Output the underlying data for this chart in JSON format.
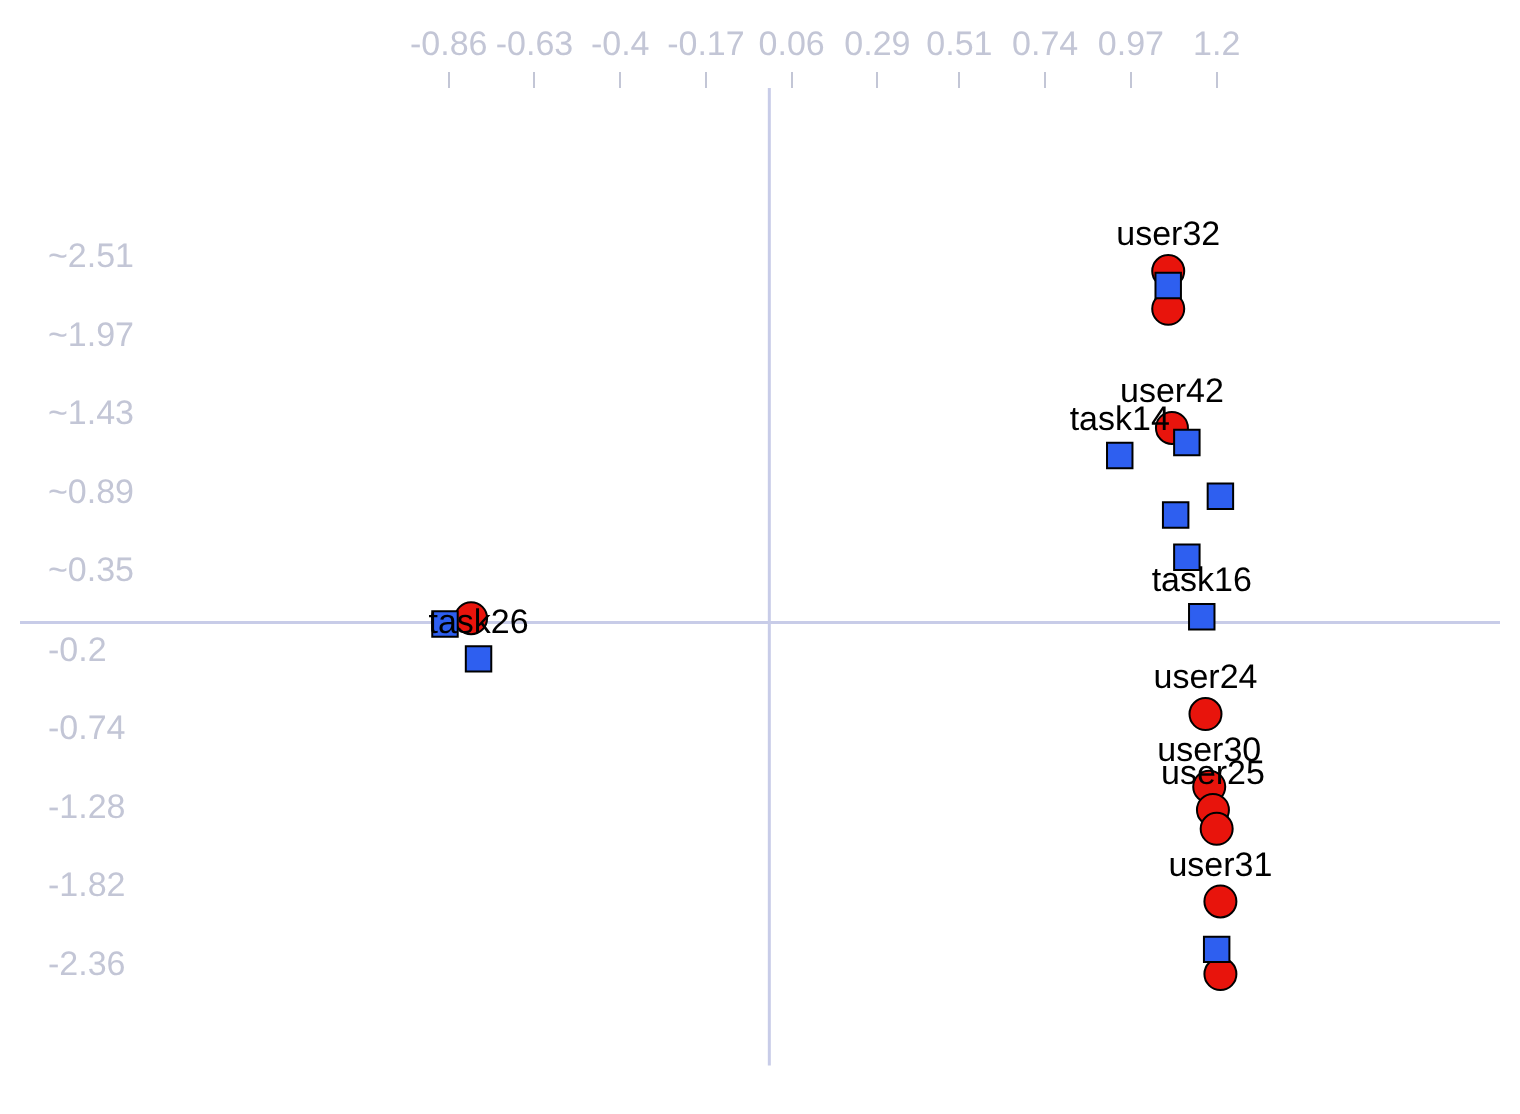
{
  "chart_data": {
    "type": "scatter",
    "xlim": [
      -2.01,
      1.96
    ],
    "ylim": [
      -3.05,
      3.68
    ],
    "xticks": [
      -0.86,
      -0.63,
      -0.4,
      {
        "value": -0.17,
        "label": "-0.17"
      },
      0.06,
      0.29,
      0.51,
      0.74,
      0.97,
      1.2
    ],
    "yticks": [
      {
        "value": 2.51,
        "label": "~2.51"
      },
      {
        "value": 1.97,
        "label": "~1.97"
      },
      {
        "value": 1.43,
        "label": "~1.43"
      },
      {
        "value": 0.89,
        "label": "~0.89"
      },
      {
        "value": 0.35,
        "label": "~0.35"
      },
      -0.2,
      -0.74,
      -1.28,
      -1.82,
      -2.36
    ],
    "grid": false,
    "legend": false,
    "series": [
      {
        "color": "#e8140c",
        "marker": "circle",
        "x": [
          1.07,
          1.07,
          1.08,
          1.17,
          1.18,
          1.19,
          1.2,
          1.21,
          1.21,
          -0.8
        ],
        "values": [
          2.42,
          2.16,
          1.34,
          -0.63,
          -1.13,
          -1.29,
          -1.42,
          -1.92,
          -2.42,
          0.03
        ],
        "value_labels": [
          "user32",
          null,
          "user42",
          "user24",
          "user30",
          "user25",
          null,
          "user31",
          null,
          null
        ]
      },
      {
        "color": "#2e5ff0",
        "marker": "square",
        "x": [
          1.07,
          0.94,
          1.12,
          1.21,
          1.09,
          1.12,
          1.16,
          1.2,
          -0.87,
          -0.78
        ],
        "values": [
          2.32,
          1.15,
          1.24,
          0.87,
          0.74,
          0.45,
          0.04,
          -2.25,
          -0.01,
          -0.25
        ],
        "value_labels": [
          null,
          "task14",
          null,
          null,
          null,
          null,
          "task16",
          null,
          null,
          "task26"
        ]
      }
    ]
  }
}
